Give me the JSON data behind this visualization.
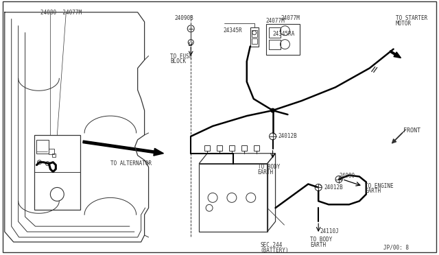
{
  "bg_color": "#ffffff",
  "line_color": "#333333",
  "thick_color": "#000000",
  "footer": "JP/00: 8",
  "font_size": 5.5,
  "labels": {
    "24080_top": "24080",
    "24077M_top": "24077M",
    "24090B": "24090B",
    "24345R": "24345R",
    "24077M_r": "24077M",
    "24345RA": "24345RA",
    "24012B_top": "24012B",
    "24012B_bot": "24012B",
    "24080_bot": "24080",
    "24110J": "24110J",
    "to_fuse_block": "TO FUSE\nBLOCK",
    "to_alternator": "TO ALTERNATOR",
    "to_starter_motor": "TO STARTER\nMOTOR",
    "to_body_earth_1": "TO BODY\nEARTH",
    "to_body_earth_2": "TO BODY\nEARTH",
    "to_engine_earth": "TO ENGINE\nEARTH",
    "front": "FRONT",
    "sec244": "SEC.244\n(BATTERY)"
  }
}
